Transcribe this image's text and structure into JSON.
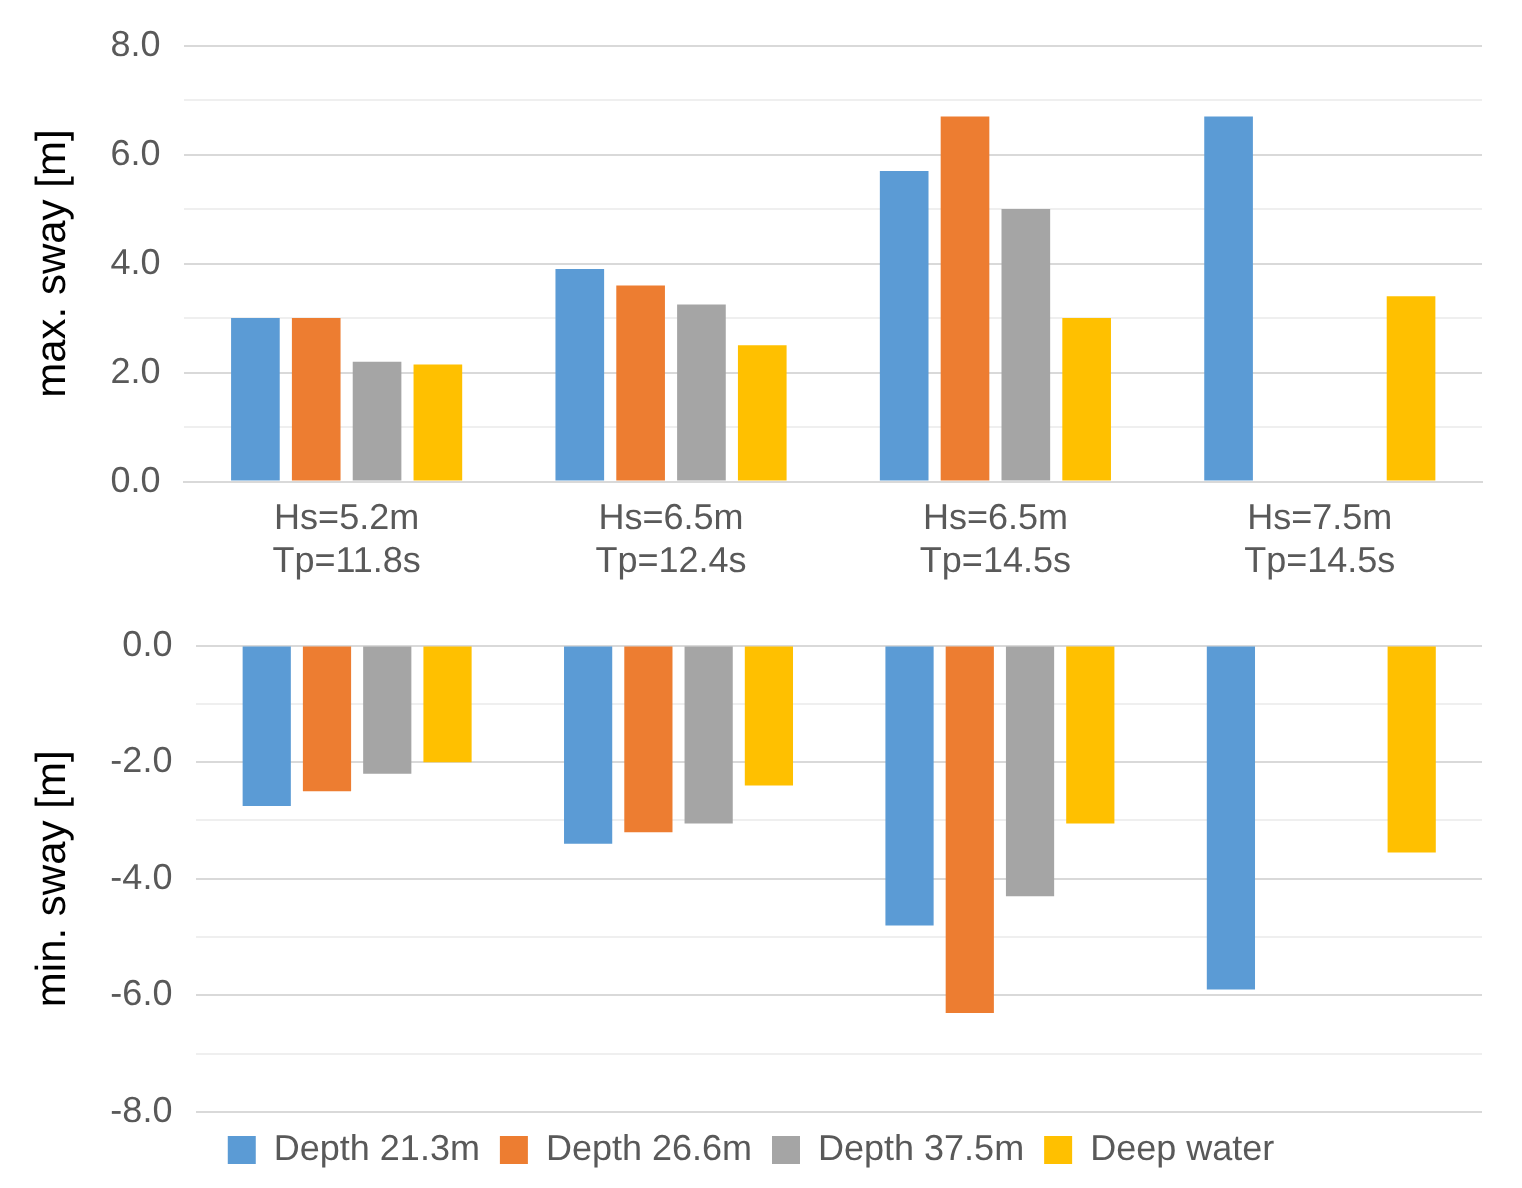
{
  "chart_data": [
    {
      "type": "bar",
      "ylabel": "max. sway [m]",
      "categories": [
        "Hs=5.2m\nTp=11.8s",
        "Hs=6.5m\nTp=12.4s",
        "Hs=6.5m\nTp=14.5s",
        "Hs=7.5m\nTp=14.5s"
      ],
      "series": [
        {
          "color": "#5b9bd5",
          "values": [
            3.0,
            3.9,
            5.7,
            6.7
          ]
        },
        {
          "color": "#ed7d31",
          "values": [
            3.0,
            3.6,
            6.7,
            null
          ]
        },
        {
          "color": "#a5a5a5",
          "values": [
            2.2,
            3.25,
            5.0,
            null
          ]
        },
        {
          "color": "#ffc000",
          "values": [
            2.15,
            2.5,
            3.0,
            3.4
          ]
        }
      ],
      "ylim": [
        0,
        8
      ],
      "yticks": [
        {
          "value": 0,
          "label": "0.0"
        },
        {
          "value": 1,
          "label": null
        },
        {
          "value": 2,
          "label": "2.0"
        },
        {
          "value": 3,
          "label": null
        },
        {
          "value": 4,
          "label": "4.0"
        },
        {
          "value": 5,
          "label": null
        },
        {
          "value": 6,
          "label": "6.0"
        },
        {
          "value": 7,
          "label": null
        },
        {
          "value": 8,
          "label": "8.0"
        }
      ],
      "grid": "y",
      "legend": false
    },
    {
      "type": "bar",
      "ylabel": "min. sway [m]",
      "categories": [
        null,
        null,
        null,
        null
      ],
      "series": [
        {
          "name": "Depth 21.3m",
          "color": "#5b9bd5",
          "values": [
            -2.75,
            -3.4,
            -4.8,
            -5.9
          ]
        },
        {
          "name": "Depth 26.6m",
          "color": "#ed7d31",
          "values": [
            -2.5,
            -3.2,
            -6.3,
            null
          ]
        },
        {
          "name": "Depth 37.5m",
          "color": "#a5a5a5",
          "values": [
            -2.2,
            -3.05,
            -4.3,
            null
          ]
        },
        {
          "name": "Deep water",
          "color": "#ffc000",
          "values": [
            -2.0,
            -2.4,
            -3.05,
            -3.55
          ]
        }
      ],
      "ylim": [
        -8,
        0
      ],
      "yticks": [
        {
          "value": -8,
          "label": "-8.0"
        },
        {
          "value": -7,
          "label": null
        },
        {
          "value": -6,
          "label": "-6.0"
        },
        {
          "value": -5,
          "label": null
        },
        {
          "value": -4,
          "label": "-4.0"
        },
        {
          "value": -3,
          "label": null
        },
        {
          "value": -2,
          "label": "-2.0"
        },
        {
          "value": -1,
          "label": null
        },
        {
          "value": 0,
          "label": "0.0"
        }
      ],
      "grid": "y",
      "legend": "bottom",
      "tick_labels": "y"
    }
  ]
}
